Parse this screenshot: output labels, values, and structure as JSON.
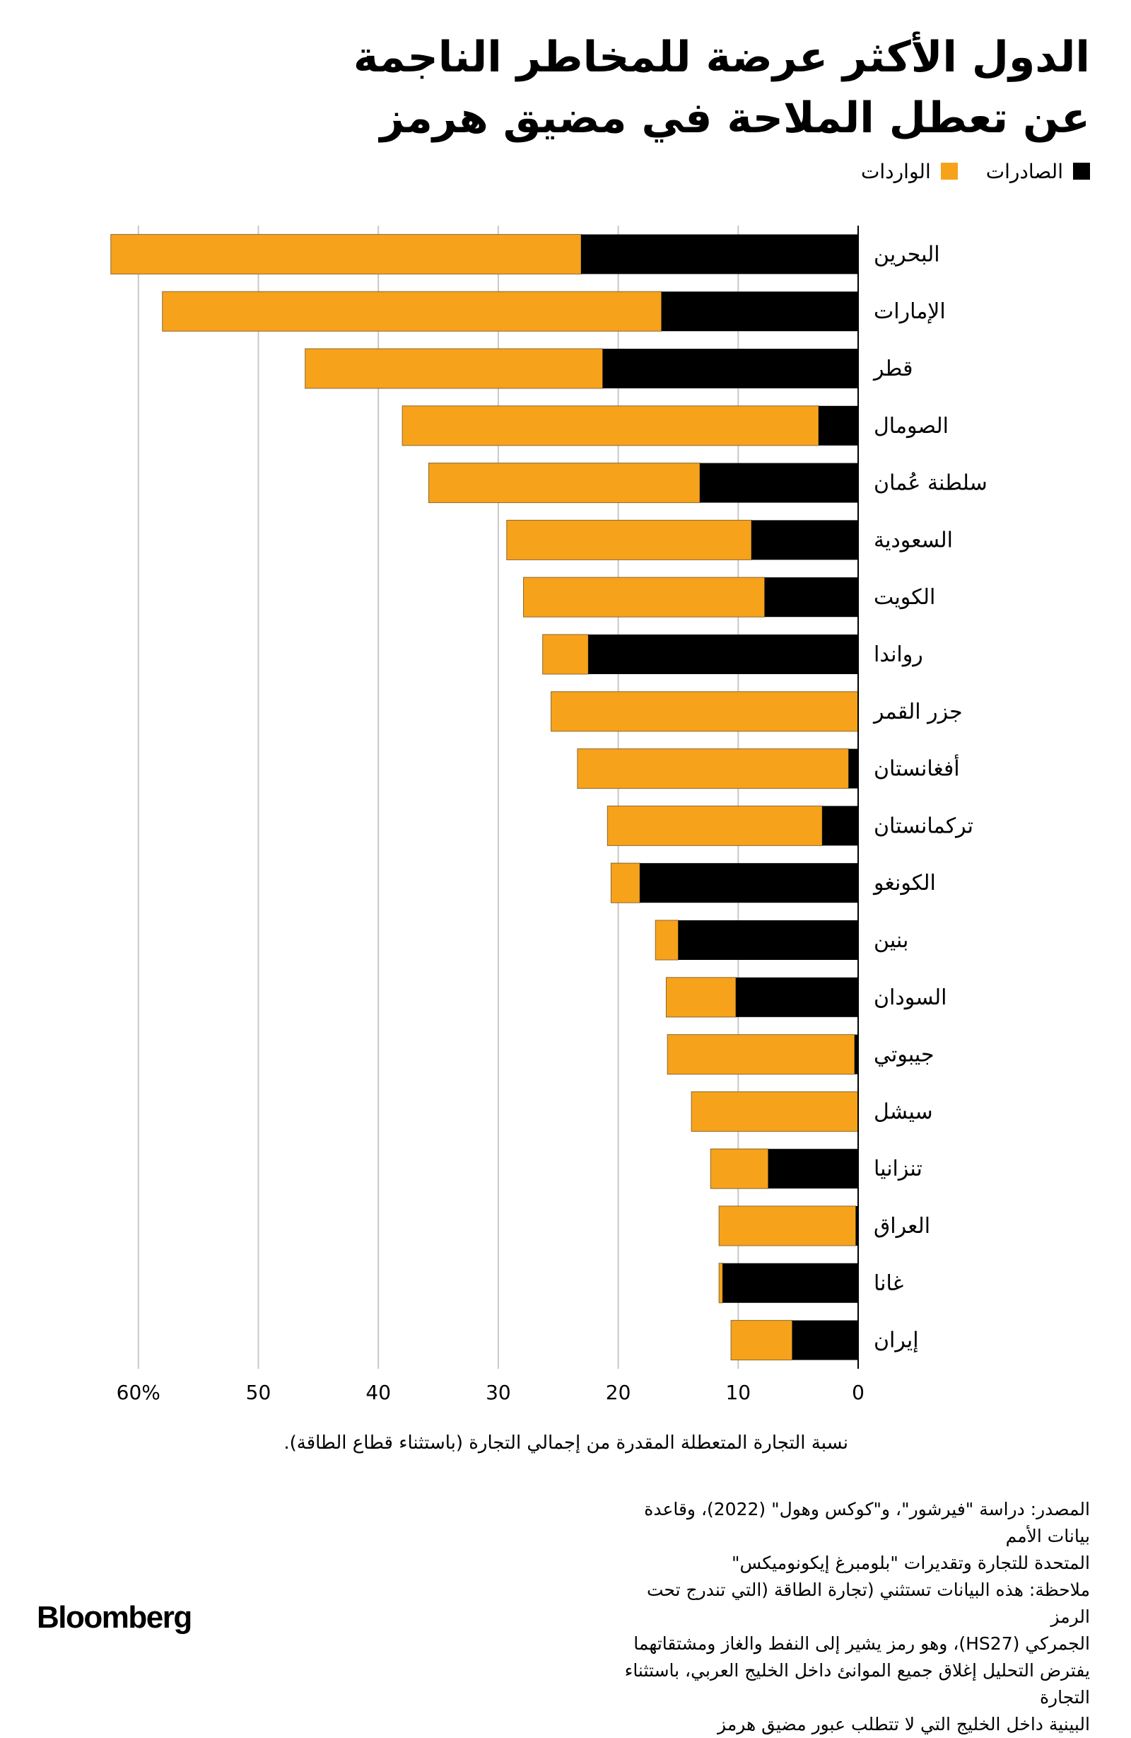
{
  "title_line1": "الدول الأكثر عرضة للمخاطر الناجمة",
  "title_line2": "عن تعطل الملاحة في مضيق هرمز",
  "legend": {
    "exports_label": "الصادرات",
    "imports_label": "الواردات"
  },
  "colors": {
    "exports": "#000000",
    "imports": "#f7a21b",
    "grid": "#c8c8c8"
  },
  "chart_data": {
    "type": "bar",
    "orientation": "horizontal-stacked",
    "xlim": [
      0,
      60
    ],
    "xticks": [
      0,
      10,
      20,
      30,
      40,
      50,
      60
    ],
    "tick_labels": [
      "0",
      "10",
      "20",
      "30",
      "40",
      "50",
      "60%"
    ],
    "xlabel": "نسبة التجارة المتعطلة المقدرة من إجمالي التجارة (باستثناء قطاع الطاقة).",
    "categories": [
      "البحرين",
      "الإمارات",
      "قطر",
      "الصومال",
      "سلطنة عُمان",
      "السعودية",
      "الكويت",
      "رواندا",
      "جزر القمر",
      "أفغانستان",
      "تركمانستان",
      "الكونغو",
      "بنين",
      "السودان",
      "جيبوتي",
      "سيشل",
      "تنزانيا",
      "العراق",
      "غانا",
      "إيران"
    ],
    "series": [
      {
        "name": "الصادرات",
        "values": [
          23.1,
          16.4,
          21.3,
          3.3,
          13.2,
          8.9,
          7.8,
          22.5,
          0.0,
          0.8,
          3.0,
          18.2,
          15.0,
          10.2,
          0.3,
          0.0,
          7.5,
          0.2,
          11.3,
          5.5
        ]
      },
      {
        "name": "الواردات",
        "values": [
          39.2,
          41.6,
          24.8,
          34.7,
          22.6,
          20.4,
          20.1,
          3.8,
          25.6,
          22.6,
          17.9,
          2.4,
          1.9,
          5.8,
          15.6,
          13.9,
          4.8,
          11.4,
          0.3,
          5.1
        ]
      }
    ]
  },
  "notes": {
    "source_line1": "المصدر: دراسة \"فيرشور\"، و\"كوكس وهول\" (2022)، وقاعدة بيانات الأمم",
    "source_line2": "المتحدة للتجارة وتقديرات \"بلومبرغ إيكونوميكس\"",
    "note_line1": "ملاحظة: هذه البيانات تستثني (تجارة الطاقة (التي تندرج تحت الرمز",
    "note_line2": "الجمركي (HS27)، وهو رمز يشير إلى النفط والغاز ومشتقاتهما",
    "note_line3": "يفترض التحليل إغلاق جميع الموانئ داخل الخليج العربي، باستثناء التجارة",
    "note_line4": "البينية داخل الخليج التي لا تتطلب عبور مضيق هرمز"
  },
  "brand": "Bloomberg"
}
